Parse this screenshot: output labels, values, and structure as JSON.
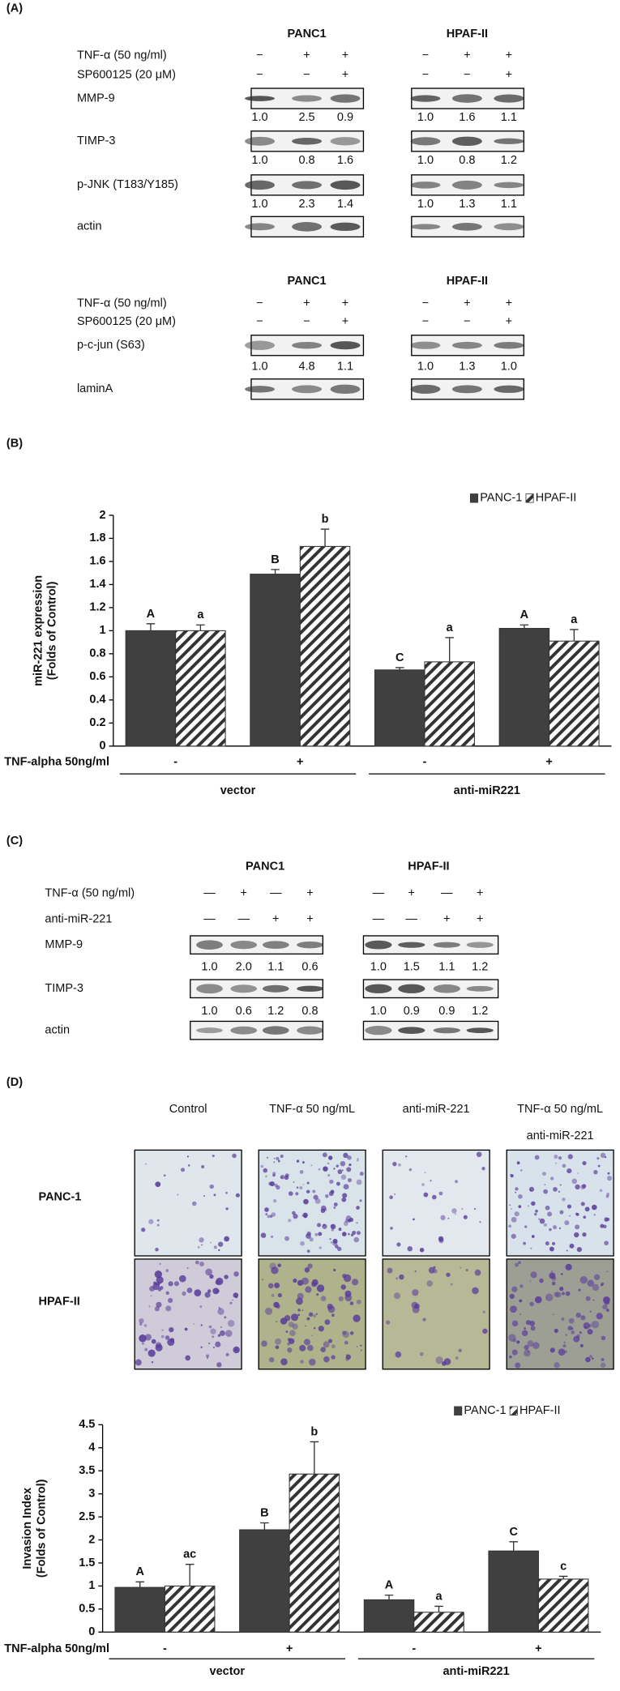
{
  "panel_a": {
    "label": "(A)",
    "blocks": [
      {
        "cell_lines": [
          "PANC1",
          "HPAF-II"
        ],
        "treatments": [
          {
            "name": "TNF-α (50 ng/ml)",
            "signs": [
              [
                "−",
                "+",
                "+"
              ],
              [
                "−",
                "+",
                "+"
              ]
            ]
          },
          {
            "name": "SP600125 (20 μM)",
            "signs": [
              [
                "−",
                "−",
                "+"
              ],
              [
                "−",
                "−",
                "+"
              ]
            ]
          }
        ],
        "rows": [
          {
            "name": "MMP-9",
            "quant": [
              [
                "1.0",
                "2.5",
                "0.9"
              ],
              [
                "1.0",
                "1.6",
                "1.1"
              ]
            ]
          },
          {
            "name": "TIMP-3",
            "quant": [
              [
                "1.0",
                "0.8",
                "1.6"
              ],
              [
                "1.0",
                "0.8",
                "1.2"
              ]
            ]
          },
          {
            "name": "p-JNK (T183/Y185)",
            "quant": [
              [
                "1.0",
                "2.3",
                "1.4"
              ],
              [
                "1.0",
                "1.3",
                "1.1"
              ]
            ]
          },
          {
            "name": "actin"
          }
        ]
      },
      {
        "cell_lines": [
          "PANC1",
          "HPAF-II"
        ],
        "treatments": [
          {
            "name": "TNF-α (50 ng/ml)",
            "signs": [
              [
                "−",
                "+",
                "+"
              ],
              [
                "−",
                "+",
                "+"
              ]
            ]
          },
          {
            "name": "SP600125 (20 μM)",
            "signs": [
              [
                "−",
                "−",
                "+"
              ],
              [
                "−",
                "−",
                "+"
              ]
            ]
          }
        ],
        "rows": [
          {
            "name": "p-c-jun (S63)",
            "quant": [
              [
                "1.0",
                "4.8",
                "1.1"
              ],
              [
                "1.0",
                "1.3",
                "1.0"
              ]
            ]
          },
          {
            "name": "laminA"
          }
        ]
      }
    ]
  },
  "panel_c": {
    "label": "(C)",
    "blocks": [
      {
        "cell_lines": [
          "PANC1",
          "HPAF-II"
        ],
        "treatments": [
          {
            "name": "TNF-α (50 ng/ml)",
            "signs": [
              [
                "—",
                "+",
                "—",
                "+"
              ],
              [
                "—",
                "+",
                "—",
                "+"
              ]
            ]
          },
          {
            "name": "anti-miR-221",
            "signs": [
              [
                "—",
                "—",
                "+",
                "+"
              ],
              [
                "—",
                "—",
                "+",
                "+"
              ]
            ]
          }
        ],
        "rows": [
          {
            "name": "MMP-9",
            "quant": [
              [
                "1.0",
                "2.0",
                "1.1",
                "0.6"
              ],
              [
                "1.0",
                "1.5",
                "1.1",
                "1.2"
              ]
            ]
          },
          {
            "name": "TIMP-3",
            "quant": [
              [
                "1.0",
                "0.6",
                "1.2",
                "0.8"
              ],
              [
                "1.0",
                "0.9",
                "0.9",
                "1.2"
              ]
            ]
          },
          {
            "name": "actin"
          }
        ]
      }
    ]
  },
  "panel_d": {
    "label": "(D)",
    "columns": [
      "Control",
      "TNF-α 50 ng/mL",
      "anti-miR-221",
      [
        "TNF-α 50 ng/mL",
        "anti-miR-221"
      ]
    ],
    "rows": [
      "PANC-1",
      "HPAF-II"
    ]
  },
  "chart_data": [
    {
      "type": "bar",
      "panel_label": "(B)",
      "y_label": [
        "miR-221 expression",
        "(Folds of Control)"
      ],
      "x_label": "TNF-alpha 50ng/ml",
      "categories": [
        "-",
        "+",
        "-",
        "+"
      ],
      "groups": [
        "vector",
        "anti-miR221"
      ],
      "series": [
        {
          "name": "PANC-1",
          "color": "#404040",
          "values": [
            1.0,
            1.49,
            0.66,
            1.02
          ],
          "errors": [
            0.06,
            0.04,
            0.02,
            0.03
          ],
          "letters": [
            "A",
            "B",
            "C",
            "A"
          ]
        },
        {
          "name": "HPAF-II",
          "color": "#ffffff",
          "hatch": true,
          "values": [
            1.0,
            1.73,
            0.73,
            0.91
          ],
          "errors": [
            0.05,
            0.15,
            0.21,
            0.1
          ],
          "letters": [
            "a",
            "b",
            "a",
            "a"
          ]
        }
      ],
      "ylim": [
        0,
        2
      ],
      "yticks": [
        0,
        0.2,
        0.4,
        0.6,
        0.8,
        1,
        1.2,
        1.4,
        1.6,
        1.8,
        2
      ],
      "legend": "top-right"
    },
    {
      "type": "bar",
      "y_label": [
        "Invasion Index",
        "(Folds of Control)"
      ],
      "x_label": "TNF-alpha 50ng/ml",
      "categories": [
        "-",
        "+",
        "-",
        "+"
      ],
      "groups": [
        "vector",
        "anti-miR221"
      ],
      "series": [
        {
          "name": "PANC-1",
          "color": "#404040",
          "values": [
            0.97,
            2.22,
            0.7,
            1.76
          ],
          "errors": [
            0.12,
            0.15,
            0.1,
            0.2
          ],
          "letters": [
            "A",
            "B",
            "A",
            "C"
          ]
        },
        {
          "name": "HPAF-II",
          "color": "#ffffff",
          "hatch": true,
          "values": [
            1.0,
            3.43,
            0.43,
            1.15
          ],
          "errors": [
            0.47,
            0.7,
            0.13,
            0.06
          ],
          "letters": [
            "ac",
            "b",
            "a",
            "c"
          ]
        }
      ],
      "ylim": [
        0,
        4.5
      ],
      "yticks": [
        0,
        0.5,
        1,
        1.5,
        2,
        2.5,
        3,
        3.5,
        4,
        4.5
      ],
      "legend": "top-right"
    }
  ]
}
